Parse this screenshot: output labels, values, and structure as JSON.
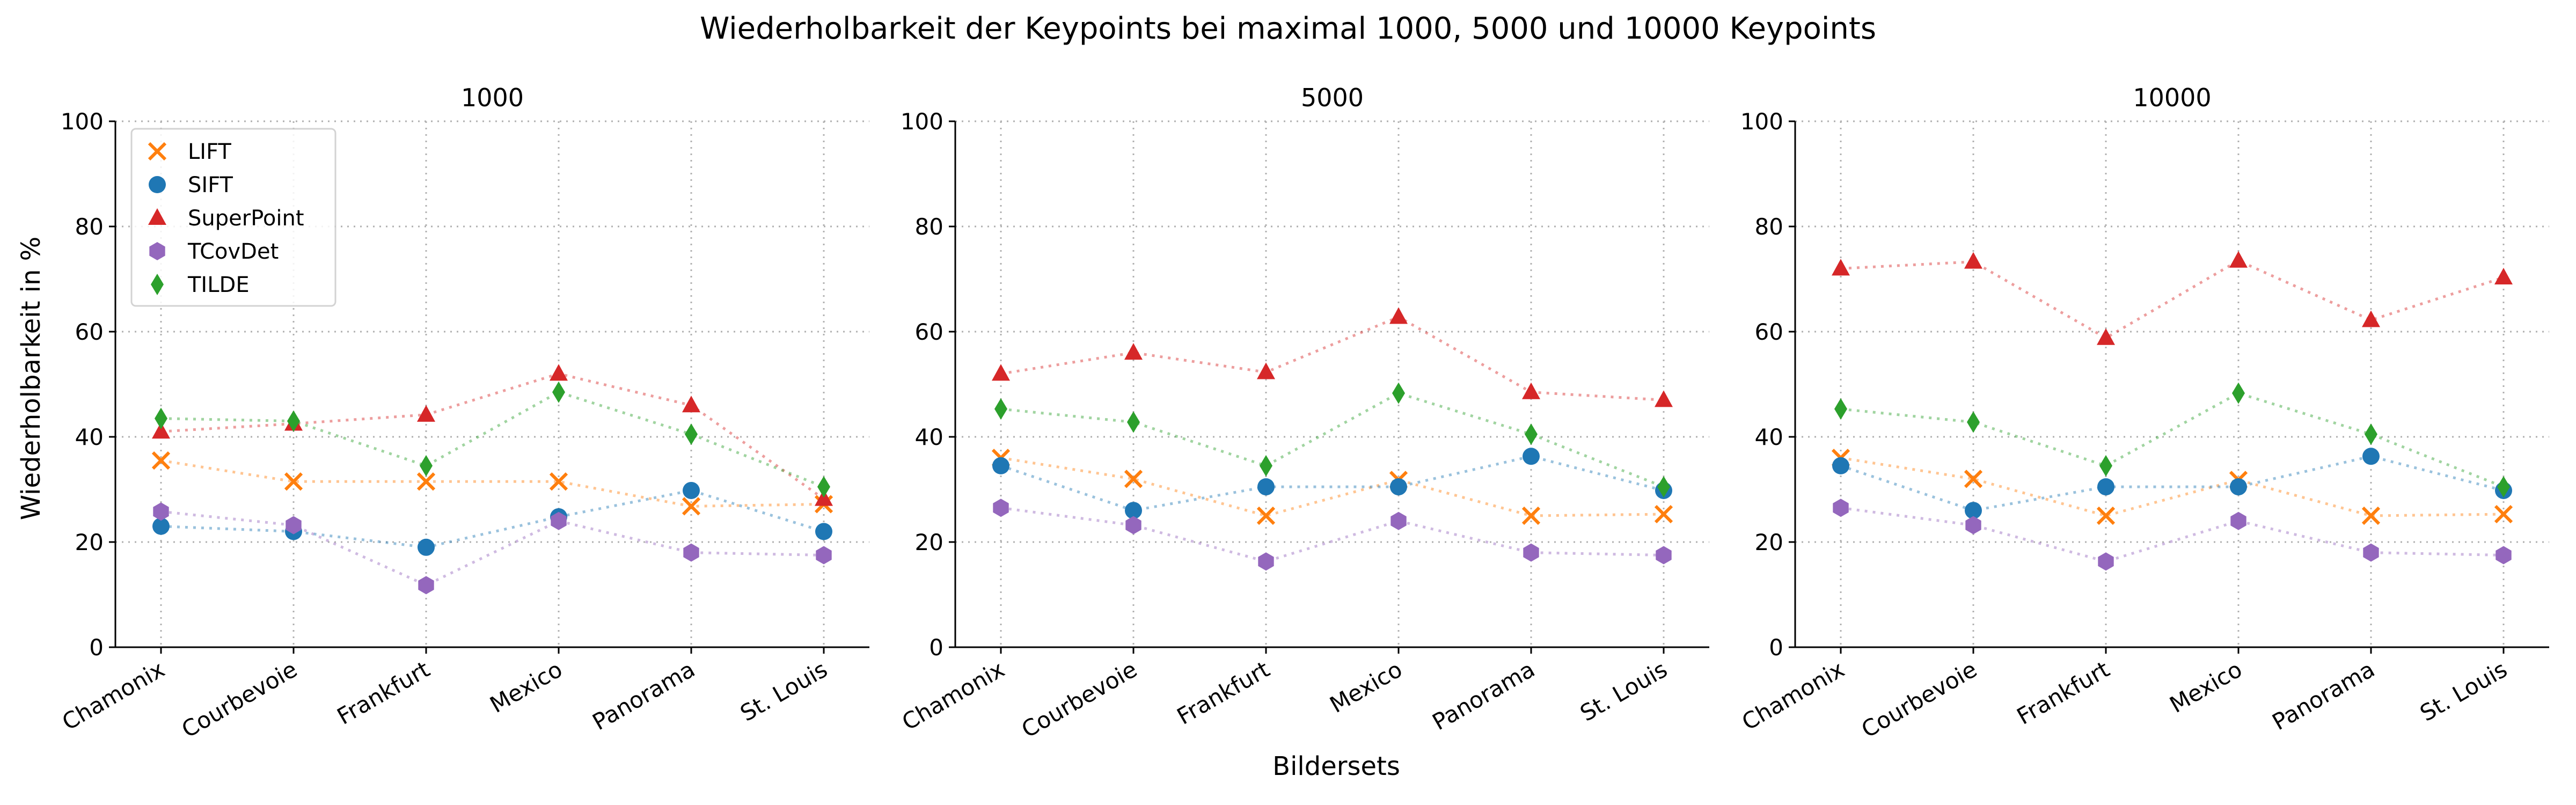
{
  "title": "Wiederholbarkeit der Keypoints bei maximal 1000, 5000 und 10000 Keypoints",
  "ylabel": "Wiederholbarkeit in %",
  "xlabel": "Bildersets",
  "legend": [
    {
      "name": "LIFT",
      "color": "#ff7f0e",
      "marker": "x"
    },
    {
      "name": "SIFT",
      "color": "#1f77b4",
      "marker": "circle"
    },
    {
      "name": "SuperPoint",
      "color": "#d62728",
      "marker": "triangle"
    },
    {
      "name": "TCovDet",
      "color": "#9467bd",
      "marker": "hexagon"
    },
    {
      "name": "TILDE",
      "color": "#2ca02c",
      "marker": "thin-diamond"
    }
  ],
  "chart_data": [
    {
      "type": "scatter",
      "title": "1000",
      "categories": [
        "Chamonix",
        "Courbevoie",
        "Frankfurt",
        "Mexico",
        "Panorama",
        "St. Louis"
      ],
      "ylim": [
        0,
        100
      ],
      "yticks": [
        "0",
        "20",
        "40",
        "60",
        "80",
        "100"
      ],
      "grid": true,
      "legend_position": "top-left",
      "series": [
        {
          "name": "LIFT",
          "color": "#ff7f0e",
          "marker": "x",
          "values": [
            35.5,
            31.5,
            31.5,
            31.5,
            26.8,
            27.2
          ]
        },
        {
          "name": "SIFT",
          "color": "#1f77b4",
          "marker": "circle",
          "values": [
            23.0,
            22.0,
            19.0,
            24.8,
            29.8,
            22.0
          ]
        },
        {
          "name": "SuperPoint",
          "color": "#d62728",
          "marker": "triangle",
          "values": [
            41.0,
            42.5,
            44.2,
            52.0,
            46.0,
            28.2
          ]
        },
        {
          "name": "TCovDet",
          "color": "#9467bd",
          "marker": "hexagon",
          "values": [
            25.8,
            23.2,
            11.8,
            24.0,
            18.0,
            17.5
          ]
        },
        {
          "name": "TILDE",
          "color": "#2ca02c",
          "marker": "thin-diamond",
          "values": [
            43.5,
            43.0,
            34.5,
            48.5,
            40.5,
            30.5
          ]
        }
      ]
    },
    {
      "type": "scatter",
      "title": "5000",
      "categories": [
        "Chamonix",
        "Courbevoie",
        "Frankfurt",
        "Mexico",
        "Panorama",
        "St. Louis"
      ],
      "ylim": [
        0,
        100
      ],
      "yticks": [
        "0",
        "20",
        "40",
        "60",
        "80",
        "100"
      ],
      "grid": true,
      "series": [
        {
          "name": "LIFT",
          "color": "#ff7f0e",
          "marker": "x",
          "values": [
            36.0,
            32.0,
            25.0,
            31.8,
            25.0,
            25.3
          ]
        },
        {
          "name": "SIFT",
          "color": "#1f77b4",
          "marker": "circle",
          "values": [
            34.5,
            26.0,
            30.5,
            30.5,
            36.3,
            29.8
          ]
        },
        {
          "name": "SuperPoint",
          "color": "#d62728",
          "marker": "triangle",
          "values": [
            52.0,
            56.0,
            52.3,
            62.8,
            48.5,
            47.0
          ]
        },
        {
          "name": "TCovDet",
          "color": "#9467bd",
          "marker": "hexagon",
          "values": [
            26.5,
            23.2,
            16.3,
            24.0,
            18.0,
            17.5
          ]
        },
        {
          "name": "TILDE",
          "color": "#2ca02c",
          "marker": "thin-diamond",
          "values": [
            45.3,
            42.8,
            34.5,
            48.3,
            40.5,
            30.5
          ]
        }
      ]
    },
    {
      "type": "scatter",
      "title": "10000",
      "categories": [
        "Chamonix",
        "Courbevoie",
        "Frankfurt",
        "Mexico",
        "Panorama",
        "St. Louis"
      ],
      "ylim": [
        0,
        100
      ],
      "yticks": [
        "0",
        "20",
        "40",
        "60",
        "80",
        "100"
      ],
      "grid": true,
      "series": [
        {
          "name": "LIFT",
          "color": "#ff7f0e",
          "marker": "x",
          "values": [
            36.0,
            32.0,
            25.0,
            31.8,
            25.0,
            25.3
          ]
        },
        {
          "name": "SIFT",
          "color": "#1f77b4",
          "marker": "circle",
          "values": [
            34.5,
            26.0,
            30.5,
            30.5,
            36.3,
            29.8
          ]
        },
        {
          "name": "SuperPoint",
          "color": "#d62728",
          "marker": "triangle",
          "values": [
            72.0,
            73.3,
            58.8,
            73.5,
            62.2,
            70.3
          ]
        },
        {
          "name": "TCovDet",
          "color": "#9467bd",
          "marker": "hexagon",
          "values": [
            26.5,
            23.2,
            16.3,
            24.0,
            18.0,
            17.5
          ]
        },
        {
          "name": "TILDE",
          "color": "#2ca02c",
          "marker": "thin-diamond",
          "values": [
            45.3,
            42.8,
            34.5,
            48.3,
            40.5,
            30.5
          ]
        }
      ]
    }
  ]
}
